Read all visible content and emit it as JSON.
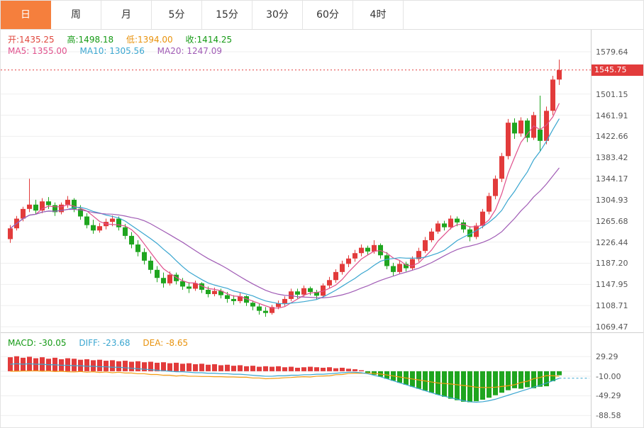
{
  "tabs": {
    "items": [
      {
        "label": "日",
        "active": true
      },
      {
        "label": "周",
        "active": false
      },
      {
        "label": "月",
        "active": false
      },
      {
        "label": "5分",
        "active": false
      },
      {
        "label": "15分",
        "active": false
      },
      {
        "label": "30分",
        "active": false
      },
      {
        "label": "60分",
        "active": false
      },
      {
        "label": "4时",
        "active": false
      }
    ]
  },
  "info": {
    "open": "开:1435.25",
    "high": "高:1498.18",
    "low": "低:1394.00",
    "close": "收:1414.25",
    "ma5": "MA5: 1355.00",
    "ma10": "MA10: 1305.56",
    "ma20": "MA20: 1247.09"
  },
  "macd_info": {
    "macd": "MACD: -30.05",
    "diff": "DIFF: -23.68",
    "dea": "DEA: -8.65"
  },
  "main_axis": {
    "labels": [
      "1579.64",
      "1501.15",
      "1461.91",
      "1422.66",
      "1383.42",
      "1344.17",
      "1304.93",
      "1265.68",
      "1226.44",
      "1187.20",
      "1147.95",
      "1108.71",
      "1069.47"
    ],
    "values": [
      1579.64,
      1501.15,
      1461.91,
      1422.66,
      1383.42,
      1344.17,
      1304.93,
      1265.68,
      1226.44,
      1187.2,
      1147.95,
      1108.71,
      1069.47
    ],
    "current": "1545.75",
    "current_value": 1545.75
  },
  "macd_axis": {
    "labels": [
      "29.29",
      "-10.00",
      "-49.29",
      "-88.58"
    ],
    "values": [
      29.29,
      -10.0,
      -49.29,
      -88.58
    ]
  },
  "colors": {
    "up": "#e23b3b",
    "down": "#1fa51f",
    "ma5": "#e0508c",
    "ma10": "#3aa6d0",
    "ma20": "#a05bb5",
    "diff_line": "#3aa6d0",
    "dea_line": "#f39c12",
    "current_line": "#e23b3b",
    "grid": "#efefef",
    "tab_accent": "#f57f3d"
  },
  "chart_data": {
    "type": "candlestick",
    "title": "",
    "price_axis_range": [
      1069.47,
      1579.64
    ],
    "current_price": 1545.75,
    "displayed_ohlc": {
      "open": 1435.25,
      "high": 1498.18,
      "low": 1394.0,
      "close": 1414.25
    },
    "displayed_ma": {
      "ma5": 1355.0,
      "ma10": 1305.56,
      "ma20": 1247.09
    },
    "candles": [
      [
        1232,
        1258,
        1225,
        1252
      ],
      [
        1252,
        1275,
        1248,
        1270
      ],
      [
        1270,
        1292,
        1265,
        1288
      ],
      [
        1288,
        1344,
        1282,
        1296
      ],
      [
        1296,
        1305,
        1278,
        1285
      ],
      [
        1285,
        1308,
        1280,
        1302
      ],
      [
        1302,
        1310,
        1288,
        1295
      ],
      [
        1295,
        1300,
        1275,
        1282
      ],
      [
        1282,
        1300,
        1278,
        1296
      ],
      [
        1296,
        1312,
        1290,
        1305
      ],
      [
        1305,
        1308,
        1282,
        1288
      ],
      [
        1288,
        1295,
        1268,
        1274
      ],
      [
        1274,
        1280,
        1252,
        1258
      ],
      [
        1258,
        1268,
        1242,
        1248
      ],
      [
        1248,
        1262,
        1244,
        1256
      ],
      [
        1256,
        1270,
        1250,
        1264
      ],
      [
        1264,
        1276,
        1256,
        1270
      ],
      [
        1270,
        1274,
        1248,
        1254
      ],
      [
        1254,
        1260,
        1232,
        1238
      ],
      [
        1238,
        1245,
        1215,
        1222
      ],
      [
        1222,
        1230,
        1200,
        1208
      ],
      [
        1208,
        1215,
        1185,
        1192
      ],
      [
        1192,
        1200,
        1168,
        1175
      ],
      [
        1175,
        1182,
        1152,
        1160
      ],
      [
        1160,
        1170,
        1142,
        1150
      ],
      [
        1150,
        1172,
        1146,
        1166
      ],
      [
        1166,
        1170,
        1148,
        1154
      ],
      [
        1154,
        1160,
        1138,
        1144
      ],
      [
        1144,
        1152,
        1132,
        1140
      ],
      [
        1140,
        1155,
        1136,
        1150
      ],
      [
        1150,
        1152,
        1132,
        1138
      ],
      [
        1138,
        1144,
        1124,
        1130
      ],
      [
        1130,
        1142,
        1126,
        1136
      ],
      [
        1136,
        1140,
        1122,
        1128
      ],
      [
        1128,
        1134,
        1114,
        1121
      ],
      [
        1121,
        1128,
        1110,
        1117
      ],
      [
        1117,
        1132,
        1113,
        1126
      ],
      [
        1126,
        1128,
        1108,
        1114
      ],
      [
        1114,
        1118,
        1100,
        1107
      ],
      [
        1107,
        1112,
        1092,
        1099
      ],
      [
        1099,
        1106,
        1088,
        1095
      ],
      [
        1095,
        1110,
        1092,
        1106
      ],
      [
        1106,
        1118,
        1102,
        1113
      ],
      [
        1113,
        1126,
        1108,
        1121
      ],
      [
        1121,
        1140,
        1117,
        1135
      ],
      [
        1135,
        1140,
        1122,
        1129
      ],
      [
        1129,
        1146,
        1125,
        1141
      ],
      [
        1141,
        1144,
        1128,
        1134
      ],
      [
        1134,
        1138,
        1120,
        1127
      ],
      [
        1127,
        1150,
        1123,
        1146
      ],
      [
        1146,
        1162,
        1141,
        1156
      ],
      [
        1156,
        1176,
        1151,
        1171
      ],
      [
        1171,
        1192,
        1166,
        1186
      ],
      [
        1186,
        1202,
        1180,
        1196
      ],
      [
        1196,
        1212,
        1190,
        1206
      ],
      [
        1206,
        1222,
        1200,
        1216
      ],
      [
        1216,
        1220,
        1202,
        1209
      ],
      [
        1209,
        1230,
        1205,
        1221
      ],
      [
        1221,
        1224,
        1196,
        1202
      ],
      [
        1202,
        1208,
        1176,
        1182
      ],
      [
        1182,
        1188,
        1164,
        1171
      ],
      [
        1171,
        1192,
        1167,
        1186
      ],
      [
        1186,
        1190,
        1172,
        1178
      ],
      [
        1178,
        1200,
        1174,
        1195
      ],
      [
        1195,
        1216,
        1190,
        1210
      ],
      [
        1210,
        1236,
        1206,
        1230
      ],
      [
        1230,
        1252,
        1226,
        1246
      ],
      [
        1246,
        1266,
        1242,
        1261
      ],
      [
        1261,
        1266,
        1248,
        1254
      ],
      [
        1254,
        1276,
        1250,
        1270
      ],
      [
        1270,
        1274,
        1256,
        1263
      ],
      [
        1263,
        1268,
        1244,
        1250
      ],
      [
        1250,
        1256,
        1228,
        1236
      ],
      [
        1236,
        1262,
        1232,
        1257
      ],
      [
        1257,
        1288,
        1252,
        1283
      ],
      [
        1283,
        1318,
        1278,
        1312
      ],
      [
        1312,
        1350,
        1306,
        1344
      ],
      [
        1344,
        1392,
        1338,
        1386
      ],
      [
        1386,
        1455,
        1380,
        1448
      ],
      [
        1448,
        1456,
        1418,
        1428
      ],
      [
        1428,
        1458,
        1422,
        1452
      ],
      [
        1452,
        1456,
        1412,
        1420
      ],
      [
        1420,
        1468,
        1416,
        1462
      ],
      [
        1435.25,
        1498.18,
        1394.0,
        1414.25
      ],
      [
        1414.25,
        1478,
        1408,
        1470
      ],
      [
        1470,
        1535,
        1462,
        1528
      ],
      [
        1528,
        1565,
        1518,
        1545.75
      ]
    ],
    "macd": {
      "axis_range": [
        -88.58,
        29.29
      ],
      "displayed": {
        "macd": -30.05,
        "diff": -23.68,
        "dea": -8.65
      },
      "hist": [
        28,
        30,
        27,
        29,
        26,
        28,
        25,
        27,
        24,
        26,
        25,
        23,
        24,
        22,
        23,
        21,
        22,
        20,
        21,
        19,
        20,
        18,
        19,
        17,
        18,
        16,
        17,
        15,
        16,
        14,
        15,
        13,
        14,
        12,
        13,
        11,
        12,
        10,
        11,
        9,
        10,
        9,
        10,
        8,
        9,
        7,
        8,
        9,
        8,
        7,
        8,
        6,
        7,
        5,
        4,
        2,
        -3,
        -7,
        -11,
        -15,
        -19,
        -23,
        -27,
        -31,
        -35,
        -39,
        -43,
        -47,
        -51,
        -55,
        -58,
        -61,
        -62,
        -60,
        -57,
        -53,
        -48,
        -43,
        -38,
        -34,
        -35,
        -32,
        -34,
        -31,
        -30.05,
        -20,
        -8
      ],
      "diff": [
        14,
        15,
        14,
        15,
        14,
        14,
        13,
        13,
        12,
        12,
        11,
        11,
        10,
        10,
        9,
        9,
        8,
        8,
        7,
        6,
        5,
        4,
        3,
        2,
        1,
        0,
        -1,
        -1,
        -2,
        -3,
        -3,
        -4,
        -4,
        -5,
        -5,
        -6,
        -6,
        -7,
        -8,
        -9,
        -10,
        -10,
        -9,
        -9,
        -8,
        -8,
        -7,
        -7,
        -6,
        -6,
        -5,
        -4,
        -3,
        -2,
        -2,
        -3,
        -5,
        -8,
        -11,
        -15,
        -19,
        -23,
        -27,
        -31,
        -35,
        -39,
        -43,
        -47,
        -50,
        -53,
        -56,
        -59,
        -61,
        -62,
        -61,
        -59,
        -56,
        -52,
        -48,
        -44,
        -40,
        -36,
        -32,
        -28,
        -23.68,
        -19,
        -14
      ]
    }
  }
}
